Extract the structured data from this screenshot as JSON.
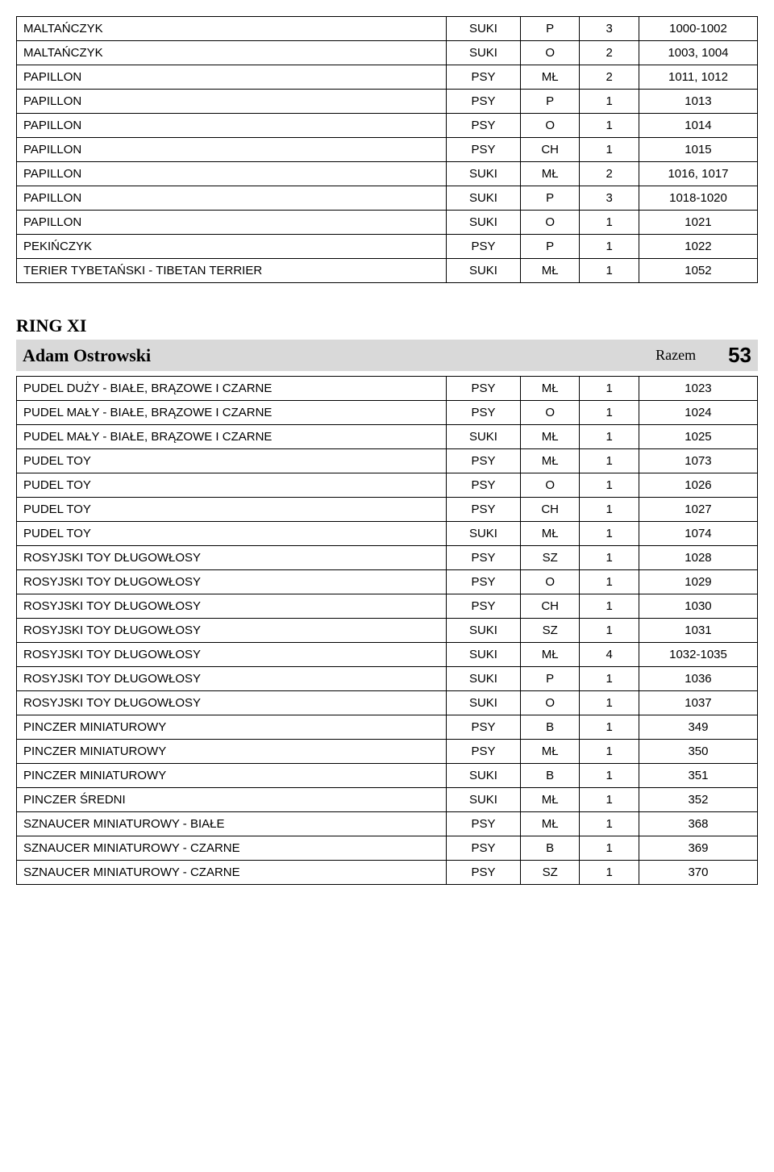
{
  "table1": {
    "rows": [
      {
        "name": "MALTAŃCZYK",
        "sex": "SUKI",
        "cls": "P",
        "cnt": "3",
        "num": "1000-1002"
      },
      {
        "name": "MALTAŃCZYK",
        "sex": "SUKI",
        "cls": "O",
        "cnt": "2",
        "num": "1003, 1004"
      },
      {
        "name": "PAPILLON",
        "sex": "PSY",
        "cls": "MŁ",
        "cnt": "2",
        "num": "1011, 1012"
      },
      {
        "name": "PAPILLON",
        "sex": "PSY",
        "cls": "P",
        "cnt": "1",
        "num": "1013"
      },
      {
        "name": "PAPILLON",
        "sex": "PSY",
        "cls": "O",
        "cnt": "1",
        "num": "1014"
      },
      {
        "name": "PAPILLON",
        "sex": "PSY",
        "cls": "CH",
        "cnt": "1",
        "num": "1015"
      },
      {
        "name": "PAPILLON",
        "sex": "SUKI",
        "cls": "MŁ",
        "cnt": "2",
        "num": "1016, 1017"
      },
      {
        "name": "PAPILLON",
        "sex": "SUKI",
        "cls": "P",
        "cnt": "3",
        "num": "1018-1020"
      },
      {
        "name": "PAPILLON",
        "sex": "SUKI",
        "cls": "O",
        "cnt": "1",
        "num": "1021"
      },
      {
        "name": "PEKIŃCZYK",
        "sex": "PSY",
        "cls": "P",
        "cnt": "1",
        "num": "1022"
      },
      {
        "name": "TERIER TYBETAŃSKI - TIBETAN TERRIER",
        "sex": "SUKI",
        "cls": "MŁ",
        "cnt": "1",
        "num": "1052"
      }
    ]
  },
  "section": {
    "ring": "RING XI",
    "judge": "Adam Ostrowski",
    "razem_label": "Razem",
    "total": "53"
  },
  "table2": {
    "rows": [
      {
        "name": "PUDEL DUŻY - BIAŁE, BRĄZOWE I CZARNE",
        "sex": "PSY",
        "cls": "MŁ",
        "cnt": "1",
        "num": "1023"
      },
      {
        "name": "PUDEL MAŁY - BIAŁE, BRĄZOWE I CZARNE",
        "sex": "PSY",
        "cls": "O",
        "cnt": "1",
        "num": "1024"
      },
      {
        "name": "PUDEL MAŁY - BIAŁE, BRĄZOWE I CZARNE",
        "sex": "SUKI",
        "cls": "MŁ",
        "cnt": "1",
        "num": "1025"
      },
      {
        "name": "PUDEL TOY",
        "sex": "PSY",
        "cls": "MŁ",
        "cnt": "1",
        "num": "1073"
      },
      {
        "name": "PUDEL TOY",
        "sex": "PSY",
        "cls": "O",
        "cnt": "1",
        "num": "1026"
      },
      {
        "name": "PUDEL TOY",
        "sex": "PSY",
        "cls": "CH",
        "cnt": "1",
        "num": "1027"
      },
      {
        "name": "PUDEL TOY",
        "sex": "SUKI",
        "cls": "MŁ",
        "cnt": "1",
        "num": "1074"
      },
      {
        "name": "ROSYJSKI TOY DŁUGOWŁOSY",
        "sex": "PSY",
        "cls": "SZ",
        "cnt": "1",
        "num": "1028"
      },
      {
        "name": "ROSYJSKI TOY DŁUGOWŁOSY",
        "sex": "PSY",
        "cls": "O",
        "cnt": "1",
        "num": "1029"
      },
      {
        "name": "ROSYJSKI TOY DŁUGOWŁOSY",
        "sex": "PSY",
        "cls": "CH",
        "cnt": "1",
        "num": "1030"
      },
      {
        "name": "ROSYJSKI TOY DŁUGOWŁOSY",
        "sex": "SUKI",
        "cls": "SZ",
        "cnt": "1",
        "num": "1031"
      },
      {
        "name": "ROSYJSKI TOY DŁUGOWŁOSY",
        "sex": "SUKI",
        "cls": "MŁ",
        "cnt": "4",
        "num": "1032-1035"
      },
      {
        "name": "ROSYJSKI TOY DŁUGOWŁOSY",
        "sex": "SUKI",
        "cls": "P",
        "cnt": "1",
        "num": "1036"
      },
      {
        "name": "ROSYJSKI TOY DŁUGOWŁOSY",
        "sex": "SUKI",
        "cls": "O",
        "cnt": "1",
        "num": "1037"
      },
      {
        "name": "PINCZER MINIATUROWY",
        "sex": "PSY",
        "cls": "B",
        "cnt": "1",
        "num": "349"
      },
      {
        "name": "PINCZER MINIATUROWY",
        "sex": "PSY",
        "cls": "MŁ",
        "cnt": "1",
        "num": "350"
      },
      {
        "name": "PINCZER MINIATUROWY",
        "sex": "SUKI",
        "cls": "B",
        "cnt": "1",
        "num": "351"
      },
      {
        "name": "PINCZER ŚREDNI",
        "sex": "SUKI",
        "cls": "MŁ",
        "cnt": "1",
        "num": "352"
      },
      {
        "name": "SZNAUCER MINIATUROWY - BIAŁE",
        "sex": "PSY",
        "cls": "MŁ",
        "cnt": "1",
        "num": "368"
      },
      {
        "name": "SZNAUCER MINIATUROWY - CZARNE",
        "sex": "PSY",
        "cls": "B",
        "cnt": "1",
        "num": "369"
      },
      {
        "name": "SZNAUCER MINIATUROWY - CZARNE",
        "sex": "PSY",
        "cls": "SZ",
        "cnt": "1",
        "num": "370"
      }
    ]
  },
  "style": {
    "border_color": "#000000",
    "header_bg": "#d9d9d9",
    "body_font": "Arial",
    "serif_font": "Times New Roman",
    "cell_fontsize": 15,
    "ring_fontsize": 22,
    "judge_fontsize": 22,
    "total_fontsize": 26
  }
}
